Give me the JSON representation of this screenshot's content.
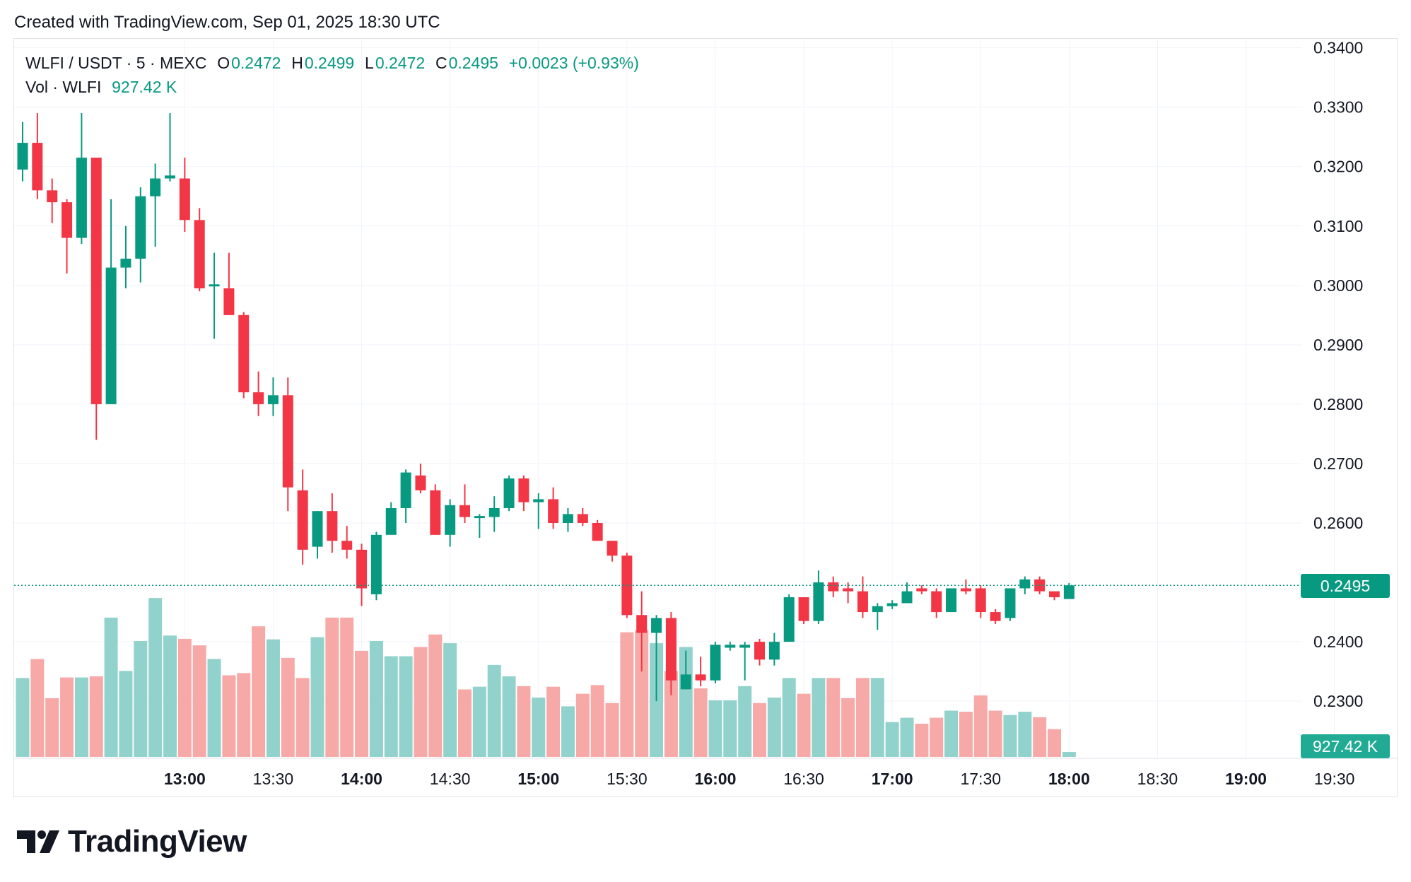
{
  "header": {
    "created_with": "Created with TradingView.com, Sep 01, 2025 18:30 UTC"
  },
  "legend": {
    "symbol": "WLFI / USDT · 5 · MEXC",
    "o_label": "O",
    "o_value": "0.2472",
    "h_label": "H",
    "h_value": "0.2499",
    "l_label": "L",
    "l_value": "0.2472",
    "c_label": "C",
    "c_value": "0.2495",
    "change": "+0.0023 (+0.93%)",
    "vol_label": "Vol · WLFI",
    "vol_value": "927.42 K"
  },
  "last_price_tag": "0.2495",
  "last_volume_tag": "927.42 K",
  "brand": {
    "name": "TradingView"
  },
  "colors": {
    "up": "#089981",
    "down": "#f23645",
    "vol_up": "#92d2cc",
    "vol_down": "#f7a9a7",
    "grid": "#f0f3fa"
  },
  "chart_data": {
    "type": "candlestick",
    "title": "WLFI / USDT · 5 · MEXC",
    "interval": "5",
    "ylim": [
      0.2205,
      0.3415
    ],
    "y_ticks": [
      "0.3400",
      "0.3300",
      "0.3200",
      "0.3100",
      "0.3000",
      "0.2900",
      "0.2800",
      "0.2700",
      "0.2600",
      "0.2400",
      "0.2300"
    ],
    "x_ticks": [
      {
        "label": "13:00",
        "index": 11,
        "bold": true
      },
      {
        "label": "13:30",
        "index": 17,
        "bold": false
      },
      {
        "label": "14:00",
        "index": 23,
        "bold": true
      },
      {
        "label": "14:30",
        "index": 29,
        "bold": false
      },
      {
        "label": "15:00",
        "index": 35,
        "bold": true
      },
      {
        "label": "15:30",
        "index": 41,
        "bold": false
      },
      {
        "label": "16:00",
        "index": 47,
        "bold": true
      },
      {
        "label": "16:30",
        "index": 53,
        "bold": false
      },
      {
        "label": "17:00",
        "index": 59,
        "bold": true
      },
      {
        "label": "17:30",
        "index": 65,
        "bold": false
      },
      {
        "label": "18:00",
        "index": 71,
        "bold": true
      },
      {
        "label": "18:30",
        "index": 77,
        "bold": false
      },
      {
        "label": "19:00",
        "index": 83,
        "bold": true
      },
      {
        "label": "19:30",
        "index": 89,
        "bold": false
      }
    ],
    "candles": [
      [
        0.3195,
        0.3275,
        0.3175,
        0.324,
        1.45
      ],
      [
        0.324,
        0.329,
        0.3145,
        0.316,
        1.8
      ],
      [
        0.316,
        0.318,
        0.3105,
        0.314,
        1.08
      ],
      [
        0.314,
        0.3145,
        0.302,
        0.308,
        1.46
      ],
      [
        0.308,
        0.329,
        0.307,
        0.3215,
        1.46
      ],
      [
        0.3215,
        0.3215,
        0.274,
        0.28,
        1.48
      ],
      [
        0.28,
        0.3145,
        0.28,
        0.303,
        2.56
      ],
      [
        0.303,
        0.31,
        0.2995,
        0.3045,
        1.58
      ],
      [
        0.3045,
        0.3165,
        0.3005,
        0.315,
        2.13
      ],
      [
        0.315,
        0.3205,
        0.3065,
        0.318,
        2.92
      ],
      [
        0.318,
        0.329,
        0.3175,
        0.3185,
        2.23
      ],
      [
        0.318,
        0.3215,
        0.309,
        0.311,
        2.17
      ],
      [
        0.311,
        0.313,
        0.299,
        0.2995,
        2.05
      ],
      [
        0.3,
        0.3055,
        0.291,
        0.3,
        1.8
      ],
      [
        0.2995,
        0.3055,
        0.295,
        0.295,
        1.5
      ],
      [
        0.295,
        0.2955,
        0.281,
        0.282,
        1.54
      ],
      [
        0.282,
        0.2855,
        0.278,
        0.28,
        2.4
      ],
      [
        0.28,
        0.2845,
        0.278,
        0.2815,
        2.16
      ],
      [
        0.2815,
        0.2845,
        0.262,
        0.266,
        1.82
      ],
      [
        0.2655,
        0.269,
        0.253,
        0.2555,
        1.45
      ],
      [
        0.256,
        0.262,
        0.254,
        0.262,
        2.2
      ],
      [
        0.262,
        0.265,
        0.255,
        0.257,
        2.56
      ],
      [
        0.257,
        0.2595,
        0.254,
        0.2555,
        2.56
      ],
      [
        0.2555,
        0.2565,
        0.246,
        0.249,
        1.95
      ],
      [
        0.248,
        0.2585,
        0.247,
        0.258,
        2.13
      ],
      [
        0.258,
        0.2635,
        0.259,
        0.2625,
        1.85
      ],
      [
        0.2625,
        0.269,
        0.26,
        0.2685,
        1.85
      ],
      [
        0.268,
        0.27,
        0.265,
        0.2655,
        2.02
      ],
      [
        0.2655,
        0.2665,
        0.258,
        0.258,
        2.25
      ],
      [
        0.258,
        0.264,
        0.256,
        0.263,
        2.09
      ],
      [
        0.263,
        0.2665,
        0.26,
        0.261,
        1.24
      ],
      [
        0.261,
        0.2615,
        0.2575,
        0.261,
        1.29
      ],
      [
        0.261,
        0.2645,
        0.2585,
        0.2625,
        1.69
      ],
      [
        0.2625,
        0.268,
        0.262,
        0.2675,
        1.48
      ],
      [
        0.2675,
        0.268,
        0.262,
        0.2635,
        1.3
      ],
      [
        0.2635,
        0.265,
        0.259,
        0.264,
        1.09
      ],
      [
        0.264,
        0.266,
        0.259,
        0.26,
        1.29
      ],
      [
        0.26,
        0.2625,
        0.2585,
        0.2615,
        0.93
      ],
      [
        0.2615,
        0.2625,
        0.2595,
        0.26,
        1.16
      ],
      [
        0.26,
        0.2605,
        0.257,
        0.257,
        1.32
      ],
      [
        0.257,
        0.257,
        0.2535,
        0.2545,
        0.99
      ],
      [
        0.2545,
        0.255,
        0.244,
        0.2445,
        2.29
      ],
      [
        0.2445,
        0.2485,
        0.235,
        0.2415,
        2.33
      ],
      [
        0.2415,
        0.2445,
        0.23,
        0.244,
        2.09
      ],
      [
        0.244,
        0.245,
        0.231,
        0.2335,
        1.58
      ],
      [
        0.232,
        0.2385,
        0.232,
        0.2345,
        2.02
      ],
      [
        0.2345,
        0.2375,
        0.2325,
        0.2335,
        1.26
      ],
      [
        0.2335,
        0.24,
        0.233,
        0.2395,
        1.04
      ],
      [
        0.239,
        0.24,
        0.2385,
        0.2395,
        1.04
      ],
      [
        0.239,
        0.24,
        0.2335,
        0.2395,
        1.3
      ],
      [
        0.24,
        0.2405,
        0.236,
        0.237,
        0.99
      ],
      [
        0.237,
        0.2415,
        0.236,
        0.24,
        1.09
      ],
      [
        0.24,
        0.248,
        0.24,
        0.2475,
        1.45
      ],
      [
        0.2475,
        0.2475,
        0.243,
        0.2435,
        1.16
      ],
      [
        0.2435,
        0.252,
        0.243,
        0.25,
        1.45
      ],
      [
        0.25,
        0.251,
        0.2475,
        0.2485,
        1.45
      ],
      [
        0.249,
        0.25,
        0.2465,
        0.2485,
        1.08
      ],
      [
        0.2485,
        0.251,
        0.244,
        0.245,
        1.45
      ],
      [
        0.245,
        0.2465,
        0.242,
        0.246,
        1.45
      ],
      [
        0.246,
        0.247,
        0.2455,
        0.2465,
        0.64
      ],
      [
        0.2465,
        0.25,
        0.2465,
        0.2485,
        0.72
      ],
      [
        0.249,
        0.2495,
        0.248,
        0.2485,
        0.61
      ],
      [
        0.2485,
        0.249,
        0.244,
        0.245,
        0.72
      ],
      [
        0.245,
        0.249,
        0.245,
        0.249,
        0.85
      ],
      [
        0.249,
        0.2505,
        0.248,
        0.2485,
        0.83
      ],
      [
        0.249,
        0.2495,
        0.244,
        0.245,
        1.13
      ],
      [
        0.245,
        0.2455,
        0.243,
        0.2435,
        0.85
      ],
      [
        0.244,
        0.249,
        0.2435,
        0.249,
        0.77
      ],
      [
        0.249,
        0.251,
        0.248,
        0.2505,
        0.83
      ],
      [
        0.2505,
        0.251,
        0.248,
        0.2485,
        0.73
      ],
      [
        0.2485,
        0.248,
        0.247,
        0.2475,
        0.51
      ],
      [
        0.2472,
        0.2499,
        0.2472,
        0.2495,
        0.09
      ]
    ]
  }
}
